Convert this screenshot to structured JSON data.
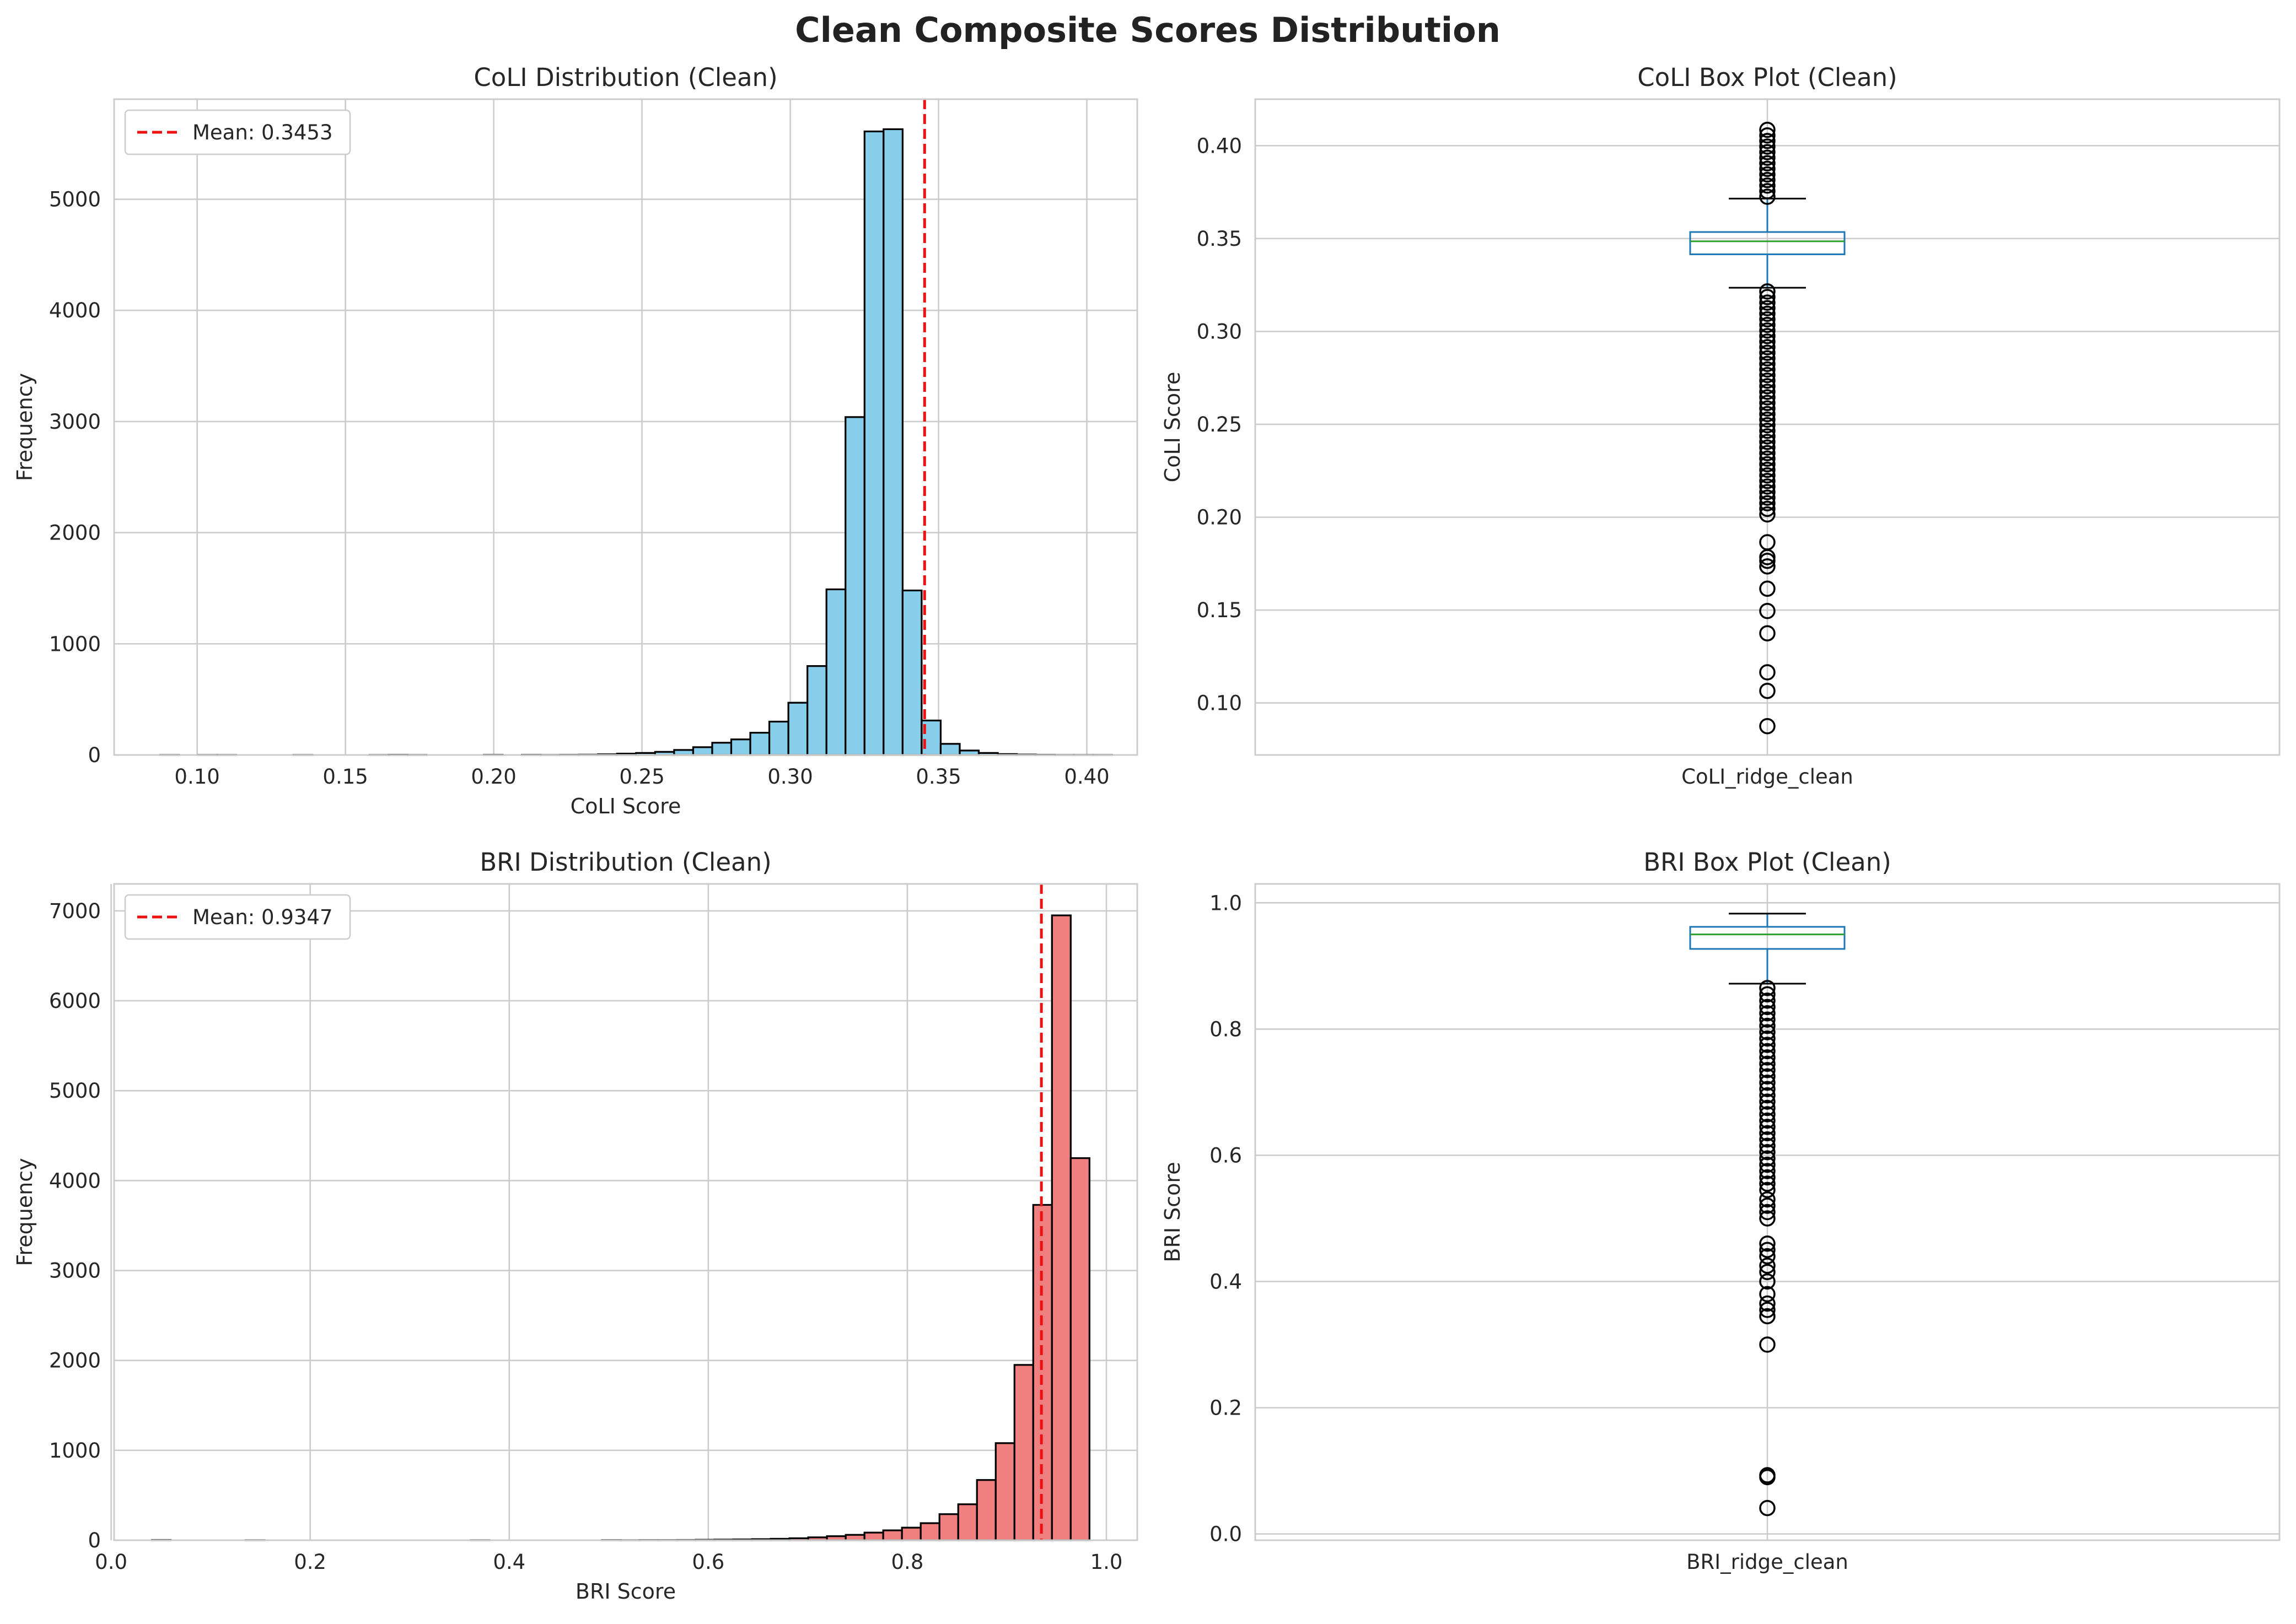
{
  "figure": {
    "suptitle": "Clean Composite Scores Distribution"
  },
  "colors": {
    "coli_bar": "#87ceeb",
    "bri_bar": "#f08080",
    "edge": "#000000",
    "mean_line": "#ee1111",
    "box": "#1f77b4",
    "median": "#2ca02c",
    "grid": "#cccccc"
  },
  "chart_data": [
    {
      "type": "bar",
      "subtype": "histogram",
      "title": "CoLI Distribution (Clean)",
      "xlabel": "CoLI Score",
      "ylabel": "Frequency",
      "xlim": [
        0.072,
        0.417
      ],
      "ylim": [
        0,
        5900
      ],
      "xticks": [
        0.1,
        0.15,
        0.2,
        0.25,
        0.3,
        0.35,
        0.4
      ],
      "xtick_labels": [
        "0.10",
        "0.15",
        "0.20",
        "0.25",
        "0.30",
        "0.35",
        "0.40"
      ],
      "yticks": [
        0,
        1000,
        2000,
        3000,
        4000,
        5000
      ],
      "ytick_labels": [
        "0",
        "1000",
        "2000",
        "3000",
        "4000",
        "5000"
      ],
      "bin_range": [
        0.0875,
        0.4085
      ],
      "values": [
        1,
        0,
        1,
        1,
        0,
        0,
        0,
        1,
        0,
        0,
        0,
        1,
        2,
        1,
        0,
        0,
        0,
        2,
        0,
        2,
        1,
        2,
        3,
        6,
        12,
        18,
        28,
        45,
        70,
        110,
        140,
        200,
        300,
        470,
        800,
        1490,
        3040,
        5610,
        5630,
        1480,
        310,
        100,
        40,
        18,
        8,
        4,
        2,
        1,
        1,
        1
      ],
      "mean": 0.3453,
      "legend": {
        "label": "Mean: 0.3453",
        "position": "upper left"
      },
      "grid": true
    },
    {
      "type": "box",
      "title": "CoLI Box Plot (Clean)",
      "xlabel": "",
      "ylabel": "CoLI Score",
      "category": "CoLI_ridge_clean",
      "ylim": [
        0.072,
        0.425
      ],
      "yticks": [
        0.1,
        0.15,
        0.2,
        0.25,
        0.3,
        0.35,
        0.4
      ],
      "ytick_labels": [
        "0.10",
        "0.15",
        "0.20",
        "0.25",
        "0.30",
        "0.35",
        "0.40"
      ],
      "q1": 0.3415,
      "median": 0.3485,
      "q3": 0.3535,
      "whisker_low": 0.3235,
      "whisker_high": 0.3715,
      "outliers": [
        0.0875,
        0.1065,
        0.1165,
        0.1375,
        0.1495,
        0.1615,
        0.1735,
        0.1765,
        0.1785,
        0.1865,
        0.2015,
        0.2045,
        0.2075,
        0.2105,
        0.2135,
        0.2165,
        0.2195,
        0.2225,
        0.2255,
        0.2285,
        0.2315,
        0.2345,
        0.2375,
        0.2405,
        0.2435,
        0.2465,
        0.2495,
        0.2525,
        0.2555,
        0.2585,
        0.2615,
        0.2645,
        0.2675,
        0.2705,
        0.2735,
        0.2765,
        0.2795,
        0.2825,
        0.2855,
        0.2885,
        0.2915,
        0.2945,
        0.2975,
        0.3005,
        0.3035,
        0.3065,
        0.3095,
        0.3125,
        0.3155,
        0.3185,
        0.3215,
        0.3725,
        0.3755,
        0.3785,
        0.3815,
        0.3845,
        0.3875,
        0.3905,
        0.3935,
        0.3965,
        0.3995,
        0.4025,
        0.4055,
        0.4085
      ],
      "grid": true
    },
    {
      "type": "bar",
      "subtype": "histogram",
      "title": "BRI Distribution (Clean)",
      "xlabel": "BRI Score",
      "ylabel": "Frequency",
      "xlim": [
        0.003,
        1.031
      ],
      "ylim": [
        0,
        7300
      ],
      "xticks": [
        0.0,
        0.2,
        0.4,
        0.6,
        0.8,
        1.0
      ],
      "xtick_labels": [
        "0.0",
        "0.2",
        "0.4",
        "0.6",
        "0.8",
        "1.0"
      ],
      "yticks": [
        0,
        1000,
        2000,
        3000,
        4000,
        5000,
        6000,
        7000
      ],
      "ytick_labels": [
        "0",
        "1000",
        "2000",
        "3000",
        "4000",
        "5000",
        "6000",
        "7000"
      ],
      "bin_range": [
        0.041,
        0.983
      ],
      "values": [
        3,
        0,
        0,
        0,
        0,
        1,
        0,
        0,
        0,
        0,
        0,
        0,
        0,
        0,
        0,
        0,
        0,
        1,
        0,
        0,
        0,
        0,
        0,
        0,
        2,
        1,
        2,
        2,
        3,
        5,
        7,
        9,
        12,
        16,
        22,
        32,
        45,
        60,
        85,
        110,
        140,
        190,
        290,
        400,
        670,
        1080,
        1950,
        3730,
        6950,
        4250
      ],
      "mean": 0.9347,
      "legend": {
        "label": "Mean: 0.9347",
        "position": "upper left"
      },
      "grid": true
    },
    {
      "type": "box",
      "title": "BRI Box Plot (Clean)",
      "xlabel": "",
      "ylabel": "BRI Score",
      "category": "BRI_ridge_clean",
      "ylim": [
        -0.01,
        1.03
      ],
      "yticks": [
        0.0,
        0.2,
        0.4,
        0.6,
        0.8,
        1.0
      ],
      "ytick_labels": [
        "0.0",
        "0.2",
        "0.4",
        "0.6",
        "0.8",
        "1.0"
      ],
      "q1": 0.927,
      "median": 0.95,
      "q3": 0.962,
      "whisker_low": 0.872,
      "whisker_high": 0.983,
      "outliers": [
        0.041,
        0.09,
        0.093,
        0.3,
        0.345,
        0.355,
        0.365,
        0.38,
        0.4,
        0.415,
        0.425,
        0.44,
        0.45,
        0.46,
        0.5,
        0.51,
        0.52,
        0.53,
        0.545,
        0.555,
        0.565,
        0.575,
        0.585,
        0.595,
        0.605,
        0.615,
        0.625,
        0.635,
        0.645,
        0.655,
        0.665,
        0.675,
        0.685,
        0.695,
        0.705,
        0.715,
        0.725,
        0.735,
        0.745,
        0.755,
        0.765,
        0.775,
        0.785,
        0.795,
        0.805,
        0.815,
        0.825,
        0.835,
        0.845,
        0.855,
        0.865
      ],
      "grid": true
    }
  ]
}
